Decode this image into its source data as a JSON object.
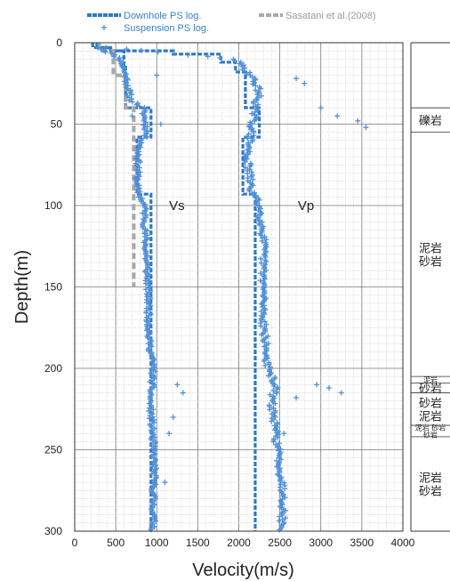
{
  "chart_data": {
    "type": "line",
    "xlabel": "Velocity(m/s)",
    "ylabel": "Depth(m)",
    "xlim": [
      0,
      4000
    ],
    "ylim": [
      0,
      300
    ],
    "y_inverted": true,
    "xticks": [
      0,
      500,
      1000,
      1500,
      2000,
      2500,
      3000,
      3500,
      4000
    ],
    "yticks": [
      0,
      50,
      100,
      150,
      200,
      250,
      300
    ],
    "grid": true,
    "legend": {
      "placement": "top",
      "entries": [
        {
          "label": "Downhole PS log.",
          "style": "dashed-line",
          "color": "#2e78c7"
        },
        {
          "label": "Suspension PS log.",
          "style": "plus-marker",
          "color": "#4f8fd6"
        },
        {
          "label": "Sasatani et al.(2008)",
          "style": "dashed-line",
          "color": "#a9a9a9"
        }
      ]
    },
    "annotations": [
      {
        "text": "Vs",
        "x": 1150,
        "y": 100
      },
      {
        "text": "Vp",
        "x": 2720,
        "y": 100
      }
    ],
    "series": [
      {
        "name": "Downhole PS log.",
        "kind": "Vs",
        "points": [
          [
            220,
            0
          ],
          [
            220,
            3
          ],
          [
            420,
            3
          ],
          [
            420,
            5
          ],
          [
            600,
            5
          ],
          [
            600,
            15
          ],
          [
            620,
            15
          ],
          [
            620,
            40
          ],
          [
            930,
            40
          ],
          [
            930,
            58
          ],
          [
            760,
            58
          ],
          [
            760,
            93
          ],
          [
            930,
            93
          ],
          [
            930,
            300
          ]
        ]
      },
      {
        "name": "Downhole PS log.",
        "kind": "Vp",
        "points": [
          [
            270,
            0
          ],
          [
            270,
            3
          ],
          [
            440,
            3
          ],
          [
            440,
            5
          ],
          [
            1200,
            5
          ],
          [
            1200,
            7
          ],
          [
            1780,
            7
          ],
          [
            1780,
            12
          ],
          [
            1960,
            12
          ],
          [
            1960,
            18
          ],
          [
            2080,
            18
          ],
          [
            2080,
            40
          ],
          [
            2250,
            40
          ],
          [
            2250,
            58
          ],
          [
            2050,
            58
          ],
          [
            2050,
            93
          ],
          [
            2200,
            93
          ],
          [
            2200,
            300
          ]
        ]
      },
      {
        "name": "Sasatani et al.(2008)",
        "kind": "Vs",
        "points": [
          [
            300,
            0
          ],
          [
            300,
            5
          ],
          [
            470,
            5
          ],
          [
            470,
            20
          ],
          [
            620,
            20
          ],
          [
            620,
            40
          ],
          [
            720,
            40
          ],
          [
            720,
            150
          ]
        ]
      },
      {
        "name": "Suspension PS log.",
        "kind": "Vs",
        "seed": 11,
        "profile": [
          [
            3,
            300
          ],
          [
            10,
            560
          ],
          [
            20,
            620
          ],
          [
            35,
            680
          ],
          [
            40,
            830
          ],
          [
            55,
            880
          ],
          [
            65,
            780
          ],
          [
            90,
            760
          ],
          [
            100,
            850
          ],
          [
            120,
            860
          ],
          [
            140,
            880
          ],
          [
            160,
            900
          ],
          [
            180,
            900
          ],
          [
            200,
            960
          ],
          [
            220,
            920
          ],
          [
            240,
            950
          ],
          [
            260,
            970
          ],
          [
            280,
            960
          ],
          [
            300,
            960
          ]
        ],
        "scatter": 30,
        "outliers": [
          [
            1000,
            20
          ],
          [
            1050,
            50
          ],
          [
            1250,
            210
          ],
          [
            1320,
            215
          ],
          [
            1200,
            230
          ],
          [
            1100,
            270
          ],
          [
            1150,
            240
          ],
          [
            700,
            45
          ]
        ]
      },
      {
        "name": "Suspension PS log.",
        "kind": "Vp",
        "seed": 29,
        "profile": [
          [
            3,
            400
          ],
          [
            10,
            1950
          ],
          [
            20,
            2150
          ],
          [
            30,
            2250
          ],
          [
            40,
            2200
          ],
          [
            55,
            2150
          ],
          [
            70,
            2100
          ],
          [
            90,
            2150
          ],
          [
            100,
            2250
          ],
          [
            120,
            2300
          ],
          [
            150,
            2300
          ],
          [
            170,
            2300
          ],
          [
            200,
            2350
          ],
          [
            210,
            2450
          ],
          [
            220,
            2400
          ],
          [
            240,
            2450
          ],
          [
            260,
            2500
          ],
          [
            280,
            2550
          ],
          [
            300,
            2520
          ]
        ],
        "scatter": 40,
        "outliers": [
          [
            2700,
            22
          ],
          [
            2800,
            25
          ],
          [
            3000,
            40
          ],
          [
            3200,
            45
          ],
          [
            3450,
            48
          ],
          [
            3550,
            52
          ],
          [
            2950,
            210
          ],
          [
            3100,
            212
          ],
          [
            3250,
            215
          ],
          [
            2700,
            218
          ],
          [
            2550,
            240
          ]
        ]
      }
    ],
    "lithology": [
      {
        "label": "礫岩",
        "from": 40,
        "to": 55,
        "size": "normal"
      },
      {
        "label": "泥岩\n砂岩",
        "from": 55,
        "to": 205,
        "size": "normal"
      },
      {
        "label": "泥岩",
        "from": 205,
        "to": 209,
        "size": "small"
      },
      {
        "label": "砂岩",
        "from": 209,
        "to": 215,
        "size": "normal"
      },
      {
        "label": "砂岩\n泥岩",
        "from": 215,
        "to": 235,
        "size": "normal"
      },
      {
        "label": "泥岩 砂岩\n砂岩",
        "from": 235,
        "to": 242,
        "size": "small"
      },
      {
        "label": "泥岩\n砂岩",
        "from": 242,
        "to": 300,
        "size": "normal"
      }
    ]
  }
}
